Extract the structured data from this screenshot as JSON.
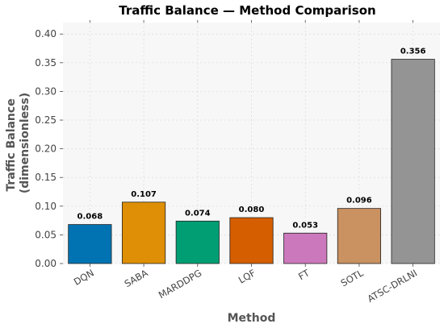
{
  "chart_data": {
    "type": "bar",
    "title": "Traffic Balance — Method Comparison",
    "xlabel": "Method",
    "ylabel_lines": [
      "Traffic Balance",
      "(dimensionless)"
    ],
    "categories": [
      "DQN",
      "SABA",
      "MARDDPG",
      "LQF",
      "FT",
      "SOTL",
      "ATSC-DRLNI"
    ],
    "values": [
      0.068,
      0.107,
      0.074,
      0.08,
      0.053,
      0.096,
      0.356
    ],
    "value_labels": [
      "0.068",
      "0.107",
      "0.074",
      "0.080",
      "0.053",
      "0.096",
      "0.356"
    ],
    "colors": [
      "#0173b2",
      "#de8f05",
      "#029e73",
      "#d55e00",
      "#cc78bc",
      "#ca9161",
      "#949494"
    ],
    "ylim": [
      0,
      0.42
    ],
    "yticks": [
      0.0,
      0.05,
      0.1,
      0.15,
      0.2,
      0.25,
      0.3,
      0.35,
      0.4
    ],
    "ytick_labels": [
      "0.00",
      "0.05",
      "0.10",
      "0.15",
      "0.20",
      "0.25",
      "0.30",
      "0.35",
      "0.40"
    ],
    "grid": true,
    "background": "#f7f7f7"
  }
}
